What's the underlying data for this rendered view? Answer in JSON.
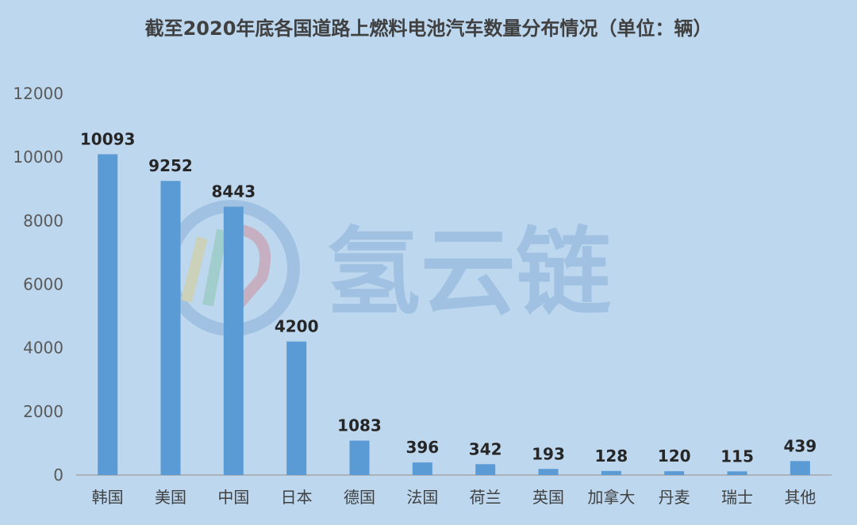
{
  "watermark": {
    "text": "氢云链",
    "icon": "hydrogen-cloud-chain-logo"
  },
  "chart_data": {
    "type": "bar",
    "title": "截至2020年底各国道路上燃料电池汽车数量分布情况（单位：辆）",
    "categories": [
      "韩国",
      "美国",
      "中国",
      "日本",
      "德国",
      "法国",
      "荷兰",
      "英国",
      "加拿大",
      "丹麦",
      "瑞士",
      "其他"
    ],
    "values": [
      10093,
      9252,
      8443,
      4200,
      1083,
      396,
      342,
      193,
      128,
      120,
      115,
      439
    ],
    "yticks": [
      0,
      2000,
      4000,
      6000,
      8000,
      10000,
      12000
    ],
    "ylim": [
      0,
      12000
    ],
    "xlabel": "",
    "ylabel": "",
    "grid": false,
    "legend": "none",
    "colors": {
      "bar": "#5b9bd5",
      "background": "#bdd7ee",
      "axis": "#a6a6a6"
    }
  }
}
